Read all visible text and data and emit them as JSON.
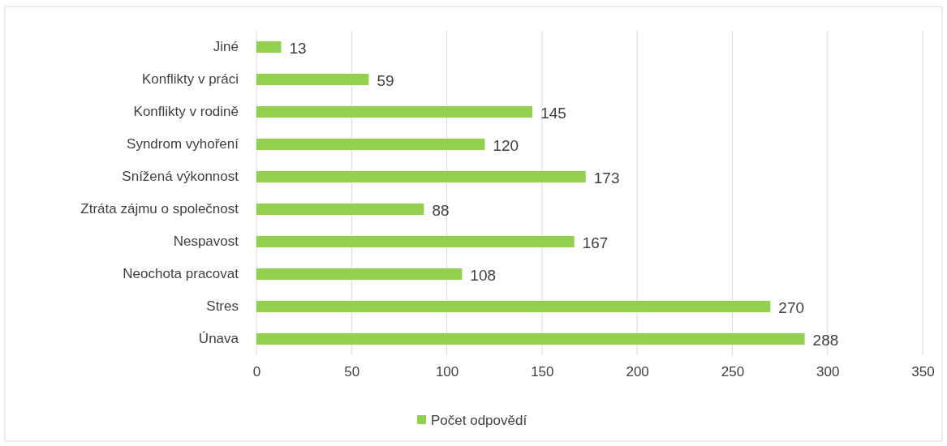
{
  "chart_data": {
    "type": "bar",
    "orientation": "horizontal",
    "categories": [
      "Jiné",
      "Konflikty v práci",
      "Konflikty v rodině",
      "Syndrom vyhoření",
      "Snížená výkonnost",
      "Ztráta zájmu o společnost",
      "Nespavost",
      "Neochota pracovat",
      "Stres",
      "Únava"
    ],
    "series": [
      {
        "name": "Počet odpovědí",
        "color": "#92d050",
        "values": [
          13,
          59,
          145,
          120,
          173,
          88,
          167,
          108,
          270,
          288
        ]
      }
    ],
    "xlim": [
      0,
      350
    ],
    "xticks": [
      0,
      50,
      100,
      150,
      200,
      250,
      300,
      350
    ],
    "grid": "x",
    "legend": "bottom",
    "data_labels": true
  }
}
